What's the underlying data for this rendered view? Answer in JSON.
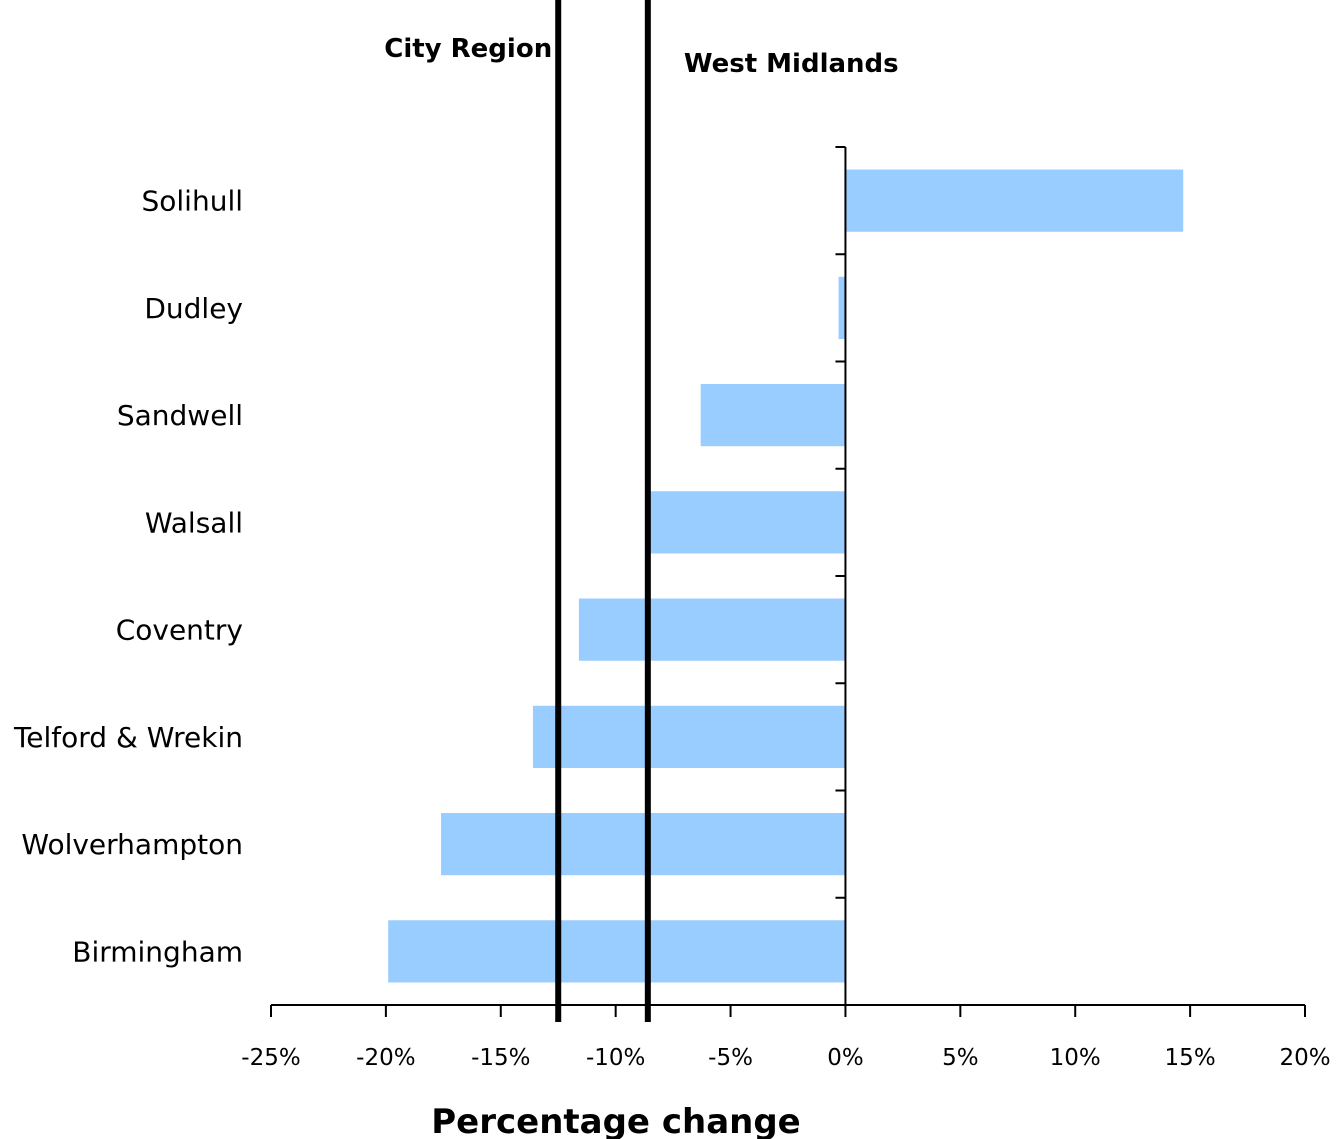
{
  "chart_data": {
    "type": "bar",
    "orientation": "horizontal",
    "categories": [
      "Solihull",
      "Dudley",
      "Sandwell",
      "Walsall",
      "Coventry",
      "Telford & Wrekin",
      "Wolverhampton",
      "Birmingham"
    ],
    "values": [
      14.7,
      -0.3,
      -6.3,
      -8.5,
      -11.6,
      -13.6,
      -17.6,
      -19.9
    ],
    "xlabel": "Percentage change",
    "ylabel": "",
    "xlim": [
      -25,
      20
    ],
    "x_ticks": [
      -25,
      -20,
      -15,
      -10,
      -5,
      0,
      5,
      10,
      15,
      20
    ],
    "x_tick_labels": [
      "-25%",
      "-20%",
      "-15%",
      "-10%",
      "-5%",
      "0%",
      "5%",
      "10%",
      "15%",
      "20%"
    ],
    "bar_color": "#99ccff",
    "grid": false,
    "reference_lines": [
      {
        "label": "City Region",
        "value": -12.5
      },
      {
        "label": "West Midlands",
        "value": -8.6
      }
    ]
  }
}
